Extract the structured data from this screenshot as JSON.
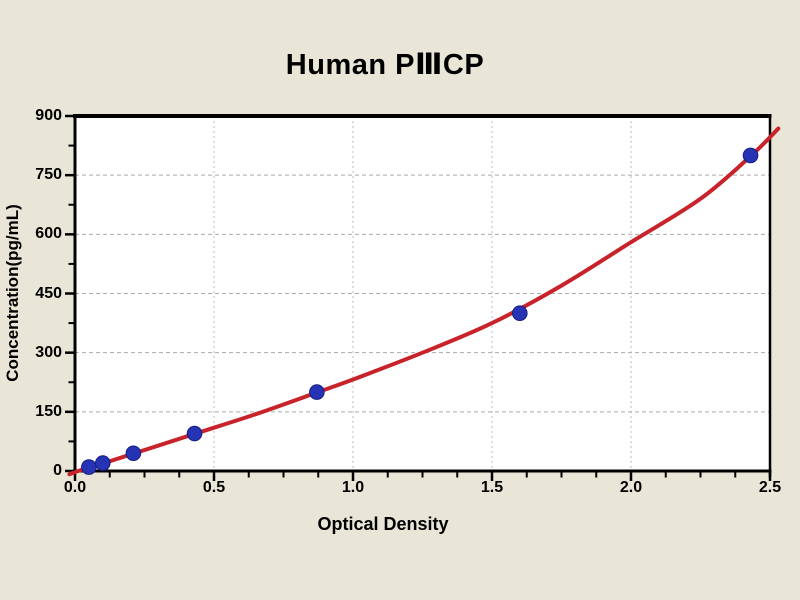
{
  "title": "Human PⅢCP",
  "colors": {
    "background": "#E9E6D7",
    "plot_bg": "#FFFFFF",
    "axis": "#000000",
    "grid_horizontal": "#ABABAB",
    "grid_vertical": "#C9C9C9",
    "curve": "#C8232B",
    "point_fill": "#2733B5",
    "point_stroke": "#151E7E",
    "text": "#000000"
  },
  "chart_data": {
    "type": "scatter",
    "title": "Human PⅢCP",
    "xlabel": "Optical Density",
    "ylabel": "Concentration(pg/mL)",
    "xlim": [
      0,
      2.5
    ],
    "ylim": [
      0,
      900
    ],
    "x_ticks": [
      0,
      0.5,
      1.0,
      1.5,
      2.0,
      2.5
    ],
    "x_tick_labels": [
      "0.0",
      "0.5",
      "1.0",
      "1.5",
      "2.0",
      "2.5"
    ],
    "x_minor_tick_step": 0.125,
    "y_ticks": [
      0,
      150,
      300,
      450,
      600,
      750,
      900
    ],
    "y_tick_labels": [
      "0",
      "150",
      "300",
      "450",
      "600",
      "750",
      "900"
    ],
    "y_minor_tick_step": 75,
    "grid": "dashed gridlines at major ticks",
    "legend_position": "none",
    "series": [
      {
        "name": "standard-points",
        "type": "scatter",
        "points": [
          [
            0.05,
            10
          ],
          [
            0.1,
            20
          ],
          [
            0.21,
            45
          ],
          [
            0.43,
            95
          ],
          [
            0.87,
            200
          ],
          [
            1.6,
            400
          ],
          [
            2.43,
            800
          ]
        ]
      },
      {
        "name": "fitted-curve",
        "type": "line",
        "points": [
          [
            -0.02,
            -8
          ],
          [
            0.05,
            9
          ],
          [
            0.1,
            19
          ],
          [
            0.21,
            44
          ],
          [
            0.43,
            94
          ],
          [
            0.65,
            144
          ],
          [
            0.87,
            199
          ],
          [
            1.0,
            232
          ],
          [
            1.25,
            300
          ],
          [
            1.5,
            375
          ],
          [
            1.75,
            470
          ],
          [
            2.0,
            580
          ],
          [
            2.25,
            690
          ],
          [
            2.43,
            798
          ],
          [
            2.53,
            868
          ]
        ]
      }
    ]
  }
}
